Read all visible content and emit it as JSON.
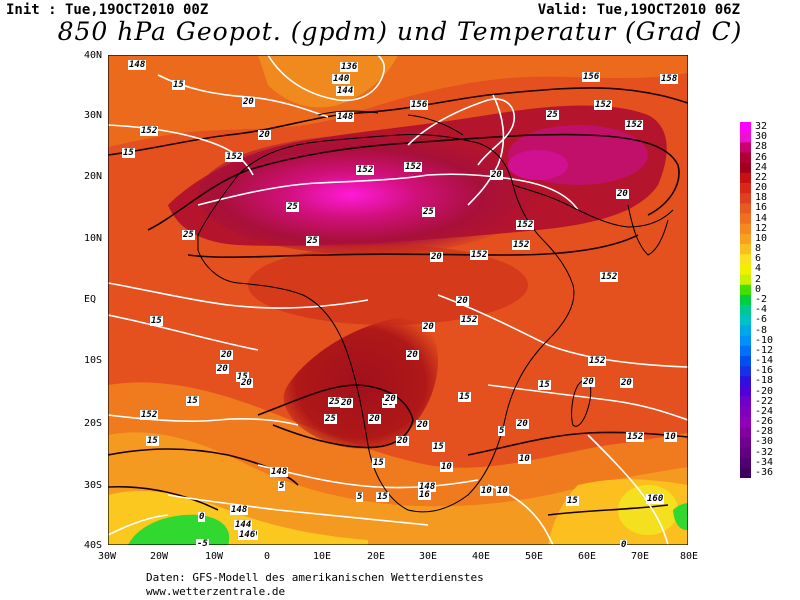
{
  "header": {
    "init": "Init : Tue,19OCT2010 00Z",
    "valid": "Valid: Tue,19OCT2010 06Z",
    "title": "850 hPa Geopot. (gpdm) und Temperatur (Grad C)"
  },
  "axes": {
    "lat": [
      "40N",
      "30N",
      "20N",
      "10N",
      "EQ",
      "10S",
      "20S",
      "30S",
      "40S"
    ],
    "lon": [
      "30W",
      "20W",
      "10W",
      "0",
      "10E",
      "20E",
      "30E",
      "40E",
      "50E",
      "60E",
      "70E",
      "80E"
    ]
  },
  "colorbar": {
    "ticks": [
      "32",
      "30",
      "28",
      "26",
      "24",
      "22",
      "20",
      "18",
      "16",
      "14",
      "12",
      "10",
      "8",
      "6",
      "4",
      "2",
      "0",
      "-2",
      "-4",
      "-6",
      "-8",
      "-10",
      "-12",
      "-14",
      "-16",
      "-18",
      "-20",
      "-22",
      "-24",
      "-26",
      "-28",
      "-30",
      "-32",
      "-34",
      "-36"
    ],
    "colors": [
      "#ff00ff",
      "#ee10d0",
      "#c80070",
      "#b00030",
      "#a0001c",
      "#c81010",
      "#d82818",
      "#e04020",
      "#e85a20",
      "#f07020",
      "#f58820",
      "#f8a020",
      "#fbbe20",
      "#fde020",
      "#f0f000",
      "#c8f000",
      "#40e000",
      "#00d040",
      "#00c890",
      "#00c0c8",
      "#00a8e8",
      "#0090f8",
      "#0070f8",
      "#0050f0",
      "#1830e8",
      "#3010e0",
      "#5000d8",
      "#7000c8",
      "#8000c0",
      "#9000b8",
      "#8000a0",
      "#700090",
      "#600080",
      "#500070",
      "#400060"
    ]
  },
  "map_labels": {
    "geopotential": [
      "148",
      "136",
      "140",
      "144",
      "148",
      "152",
      "152",
      "152",
      "152",
      "156",
      "156",
      "158",
      "152",
      "152",
      "152",
      "152",
      "152",
      "152",
      "152",
      "152",
      "152",
      "152",
      "148",
      "148",
      "144",
      "140",
      "146",
      "148",
      "160"
    ],
    "temperature": [
      "15",
      "20",
      "25",
      "15",
      "20",
      "16",
      "25",
      "20",
      "25",
      "20",
      "25",
      "25",
      "20",
      "20",
      "20",
      "20",
      "20",
      "15",
      "20",
      "20",
      "20",
      "20",
      "20",
      "25",
      "20",
      "25",
      "20",
      "20",
      "15",
      "15",
      "15",
      "15",
      "15",
      "20",
      "20",
      "10",
      "15",
      "10",
      "10",
      "10",
      "15",
      "15",
      "5",
      "5",
      "0",
      "0",
      "5",
      "-5",
      "10",
      "20",
      "15"
    ]
  },
  "footer": {
    "line1": "Daten: GFS-Modell des amerikanischen Wetterdienstes",
    "line2": "www.wetterzentrale.de"
  }
}
